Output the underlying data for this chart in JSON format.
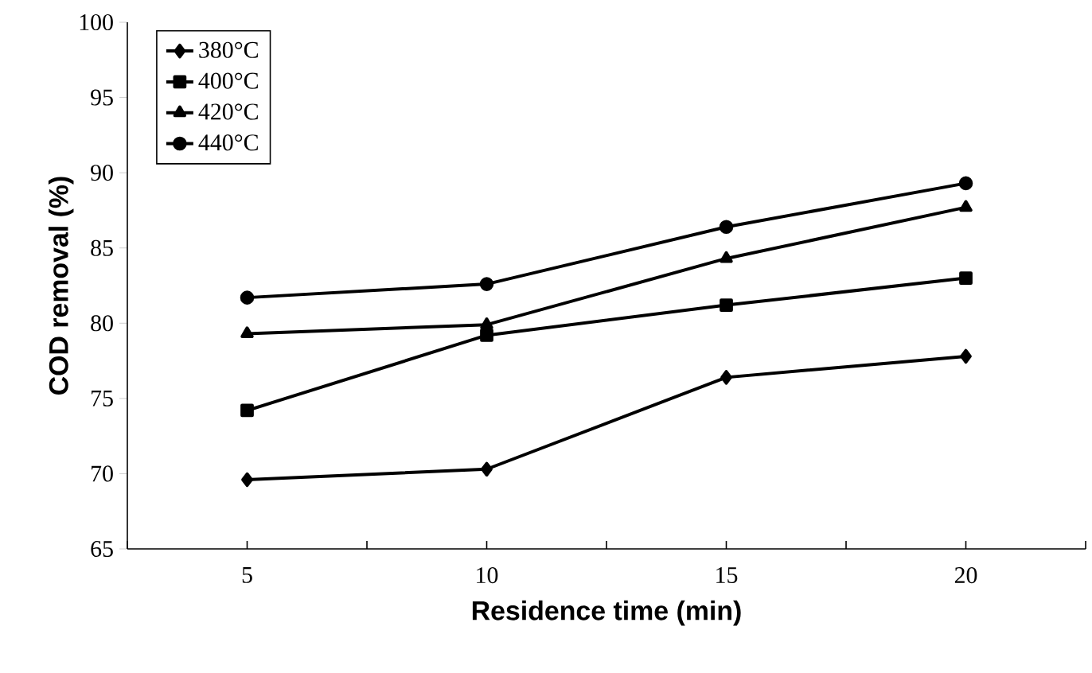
{
  "chart_data": {
    "type": "line",
    "xlabel": "Residence time (min)",
    "ylabel": "COD removal (%)",
    "x": [
      5,
      10,
      15,
      20
    ],
    "series": [
      {
        "name": "380°C",
        "color": "#000000",
        "marker": "diamond",
        "values": [
          69.6,
          70.3,
          76.4,
          77.8
        ]
      },
      {
        "name": "400°C",
        "color": "#000000",
        "marker": "square",
        "values": [
          74.2,
          79.2,
          81.2,
          83.0
        ]
      },
      {
        "name": "420°C",
        "color": "#000000",
        "marker": "triangle",
        "values": [
          79.3,
          79.9,
          84.3,
          87.7
        ]
      },
      {
        "name": "440°C",
        "color": "#000000",
        "marker": "circle",
        "values": [
          81.7,
          82.6,
          86.4,
          89.3
        ]
      }
    ],
    "xlim": [
      2.5,
      22.5
    ],
    "xticks": [
      {
        "value": 2.5,
        "label": null
      },
      5,
      {
        "value": 7.5,
        "label": null
      },
      10,
      {
        "value": 12.5,
        "label": null
      },
      15,
      {
        "value": 17.5,
        "label": null
      },
      20,
      {
        "value": 22.5,
        "label": null
      }
    ],
    "ylim": [
      65,
      100
    ],
    "yticks": [
      65,
      70,
      75,
      80,
      85,
      90,
      95,
      100
    ],
    "grid": false,
    "legend": "top left",
    "line_style": "solid"
  }
}
